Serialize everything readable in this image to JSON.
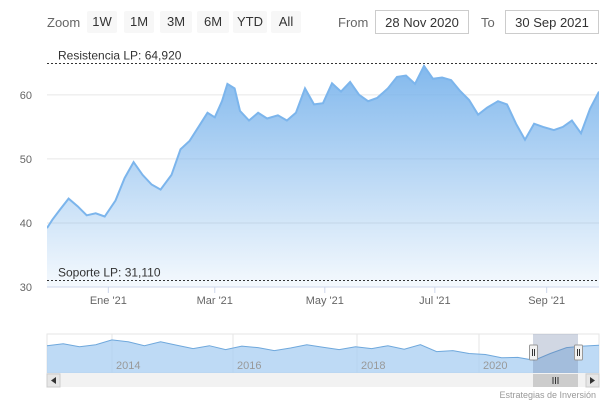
{
  "range_selector": {
    "zoom_label": "Zoom",
    "buttons": [
      "1W",
      "1M",
      "3M",
      "6M",
      "YTD",
      "All"
    ],
    "from_label": "From",
    "from_value": "28 Nov 2020",
    "to_label": "To",
    "to_value": "30 Sep 2021"
  },
  "credits": "Estrategias de Inversión",
  "colors": {
    "series": "#7cb5ec",
    "plot_line": "#333333",
    "grid": "#e6e6e6"
  },
  "chart_data": {
    "type": "area",
    "x_range": [
      "2020-11-28",
      "2021-09-30"
    ],
    "ylim": [
      30,
      67
    ],
    "y_ticks": [
      30,
      40,
      50,
      60
    ],
    "x_tick_labels": [
      "Ene '21",
      "Mar '21",
      "May '21",
      "Jul '21",
      "Sep '21"
    ],
    "x_tick_dates": [
      "2021-01-01",
      "2021-03-01",
      "2021-05-01",
      "2021-07-01",
      "2021-09-01"
    ],
    "plot_lines": [
      {
        "label": "Resistencia LP: 64,920",
        "value": 64.92
      },
      {
        "label": "Soporte LP: 31,110",
        "value": 31.11
      }
    ],
    "series": [
      {
        "x": [
          "2020-11-28",
          "2020-12-01",
          "2020-12-05",
          "2020-12-10",
          "2020-12-15",
          "2020-12-20",
          "2020-12-25",
          "2020-12-30",
          "2021-01-05",
          "2021-01-10",
          "2021-01-15",
          "2021-01-20",
          "2021-01-25",
          "2021-01-30",
          "2021-02-05",
          "2021-02-10",
          "2021-02-15",
          "2021-02-20",
          "2021-02-25",
          "2021-03-01",
          "2021-03-05",
          "2021-03-08",
          "2021-03-12",
          "2021-03-15",
          "2021-03-20",
          "2021-03-25",
          "2021-03-30",
          "2021-04-05",
          "2021-04-10",
          "2021-04-15",
          "2021-04-20",
          "2021-04-25",
          "2021-04-30",
          "2021-05-05",
          "2021-05-10",
          "2021-05-15",
          "2021-05-20",
          "2021-05-25",
          "2021-05-30",
          "2021-06-05",
          "2021-06-10",
          "2021-06-15",
          "2021-06-20",
          "2021-06-25",
          "2021-06-30",
          "2021-07-05",
          "2021-07-10",
          "2021-07-15",
          "2021-07-20",
          "2021-07-25",
          "2021-07-30",
          "2021-08-05",
          "2021-08-10",
          "2021-08-15",
          "2021-08-20",
          "2021-08-25",
          "2021-08-30",
          "2021-09-05",
          "2021-09-10",
          "2021-09-15",
          "2021-09-20",
          "2021-09-25",
          "2021-09-30"
        ],
        "y": [
          39.2,
          40.5,
          42,
          43.8,
          42.6,
          41.2,
          41.5,
          41,
          43.5,
          47,
          49.5,
          47.5,
          46,
          45.2,
          47.5,
          51.5,
          52.8,
          55,
          57.2,
          56.5,
          59,
          61.7,
          61,
          57.5,
          56,
          57.2,
          56.3,
          56.8,
          56,
          57.2,
          61,
          58.5,
          58.7,
          61.8,
          60.5,
          62,
          60,
          59,
          59.5,
          61,
          62.8,
          63,
          61.7,
          64.5,
          62.5,
          62.7,
          62.3,
          60.6,
          59.2,
          56.9,
          58,
          59,
          58.5,
          55.5,
          53,
          55.5,
          55,
          54.5,
          55,
          56,
          54,
          57.8,
          60.5
        ]
      }
    ]
  },
  "navigator": {
    "tick_labels": [
      "2014",
      "2016",
      "2018",
      "2020"
    ],
    "values": [
      58,
      59,
      57.5,
      58.5,
      61,
      60,
      58,
      60,
      58.2,
      56.5,
      58,
      56,
      57.8,
      57,
      55.5,
      56.8,
      58.5,
      57.2,
      56,
      57.5,
      56.5,
      58,
      56.2,
      58.5,
      55,
      55.5,
      54,
      53.5,
      51.8,
      52,
      50.5,
      54,
      57,
      57.8,
      58.2
    ]
  }
}
